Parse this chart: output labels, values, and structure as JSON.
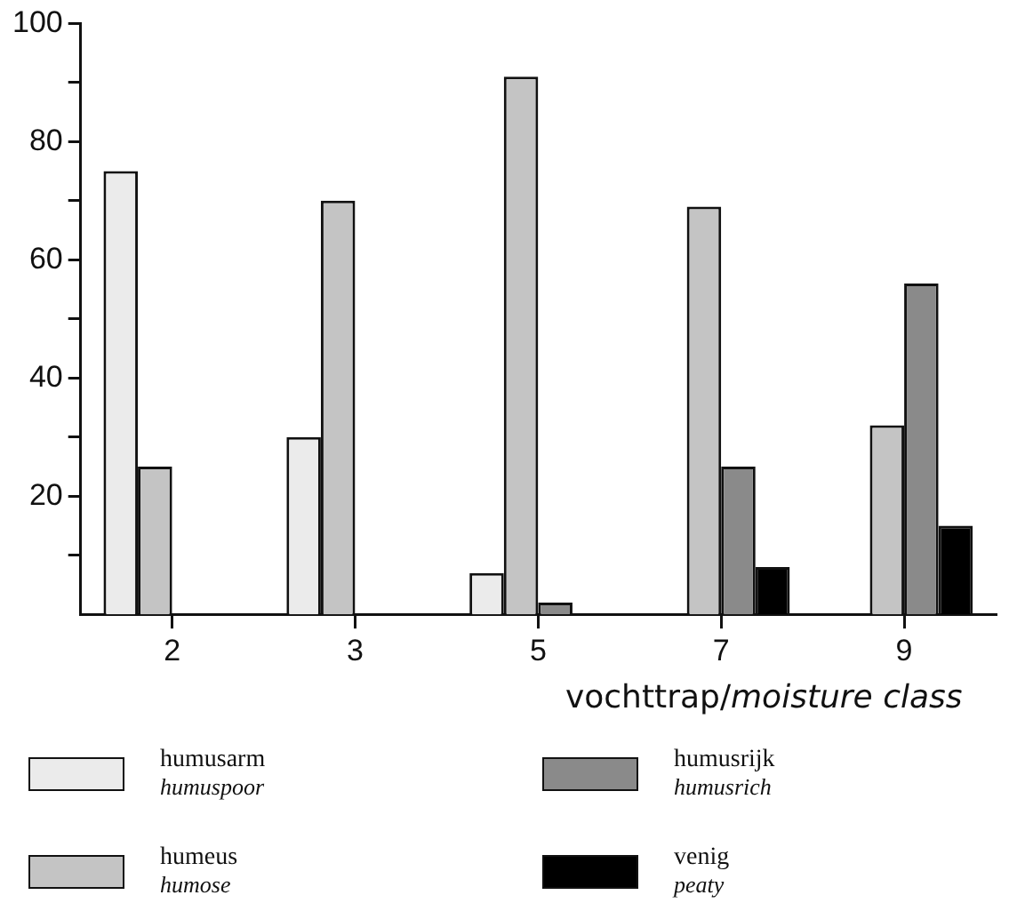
{
  "chart_data": {
    "type": "bar",
    "categories": [
      "2",
      "3",
      "5",
      "7",
      "9"
    ],
    "xlabel": "vochttrap/moisture class",
    "series": [
      {
        "name": "humusarm\nhumuspoor",
        "color": "#ebebeb",
        "values": [
          75,
          30,
          7,
          null,
          null
        ]
      },
      {
        "name": "humeus\nhumose",
        "color": "#c4c4c4",
        "values": [
          25,
          70,
          91,
          69,
          32
        ]
      },
      {
        "name": "humusrijk\nhumusrich",
        "color": "#8a8a8a",
        "values": [
          null,
          null,
          2,
          25,
          56
        ]
      },
      {
        "name": "venig\npeaty",
        "color": "#000000",
        "values": [
          null,
          null,
          null,
          8,
          15
        ]
      }
    ],
    "ylim": [
      0,
      100
    ],
    "yticks": [
      {
        "value": 10,
        "label": null
      },
      20,
      {
        "value": 30,
        "label": null
      },
      40,
      {
        "value": 50,
        "label": null
      },
      60,
      {
        "value": 70,
        "label": null
      },
      80,
      {
        "value": 90,
        "label": null
      },
      100
    ],
    "grid": false,
    "legend": "bottom"
  }
}
